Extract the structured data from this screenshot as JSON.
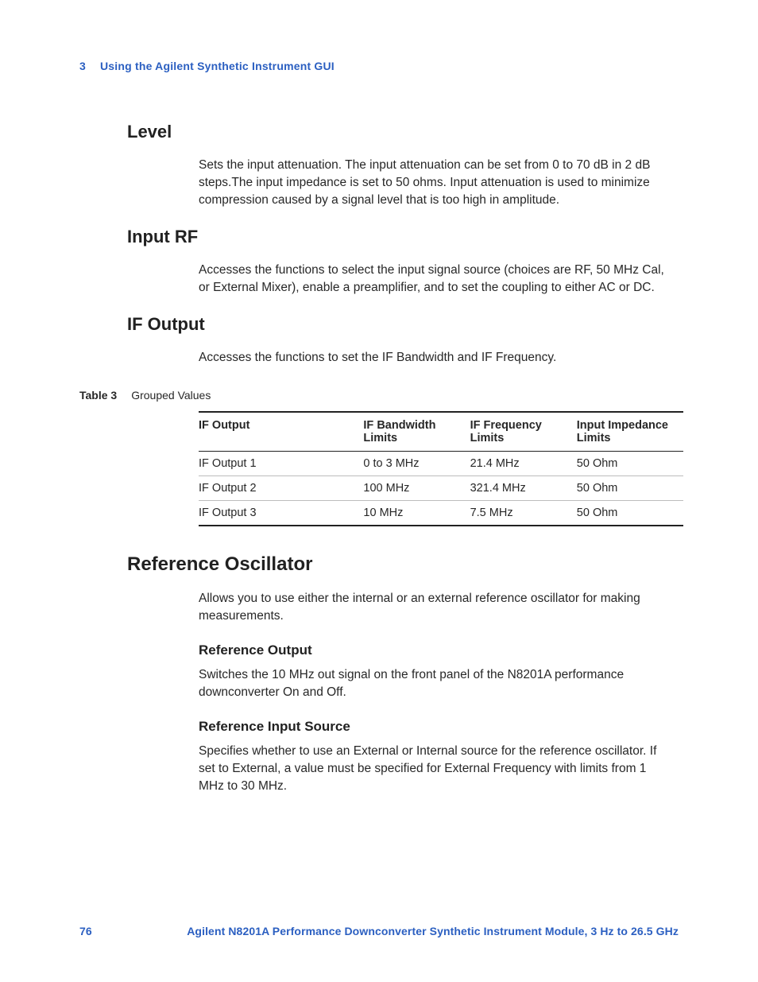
{
  "header": {
    "chapter_num": "3",
    "chapter_title": "Using the Agilent Synthetic Instrument GUI"
  },
  "sections": {
    "level": {
      "heading": "Level",
      "body": "Sets the input attenuation. The input attenuation can be set from 0 to 70 dB in 2 dB steps.The input impedance is set to 50 ohms. Input attenuation is used to minimize compression caused by a signal level that is too high in amplitude."
    },
    "input_rf": {
      "heading": "Input RF",
      "body": "Accesses the functions to select the input signal source (choices are RF, 50 MHz Cal, or External Mixer), enable a preamplifier, and to set the coupling to either AC or DC."
    },
    "if_output": {
      "heading": "IF Output",
      "body": "Accesses the functions to set the IF Bandwidth and IF Frequency."
    },
    "ref_osc": {
      "heading": "Reference Oscillator",
      "body": "Allows you to use either the internal or an external reference oscillator for making measurements.",
      "sub1_heading": "Reference Output",
      "sub1_body": "Switches the 10 MHz out signal on the front panel of the N8201A performance downconverter On and Off.",
      "sub2_heading": "Reference Input Source",
      "sub2_body": "Specifies whether to use an External or Internal source for the reference oscillator. If set to External, a value must be specified for External Frequency with limits from 1 MHz to 30 MHz."
    }
  },
  "table": {
    "label": "Table 3",
    "caption": "Grouped Values",
    "columns": [
      "IF Output",
      "IF Bandwidth Limits",
      "IF Frequency Limits",
      "Input Impedance Limits"
    ],
    "rows": [
      [
        "IF Output 1",
        "0 to 3 MHz",
        "21.4 MHz",
        "50 Ohm"
      ],
      [
        "IF Output 2",
        "100 MHz",
        "321.4 MHz",
        "50 Ohm"
      ],
      [
        "IF Output 3",
        "10 MHz",
        "7.5 MHz",
        "50 Ohm"
      ]
    ]
  },
  "footer": {
    "page_num": "76",
    "doc_title": "Agilent N8201A Performance Downconverter Synthetic Instrument Module, 3 Hz to 26.5 GHz"
  }
}
